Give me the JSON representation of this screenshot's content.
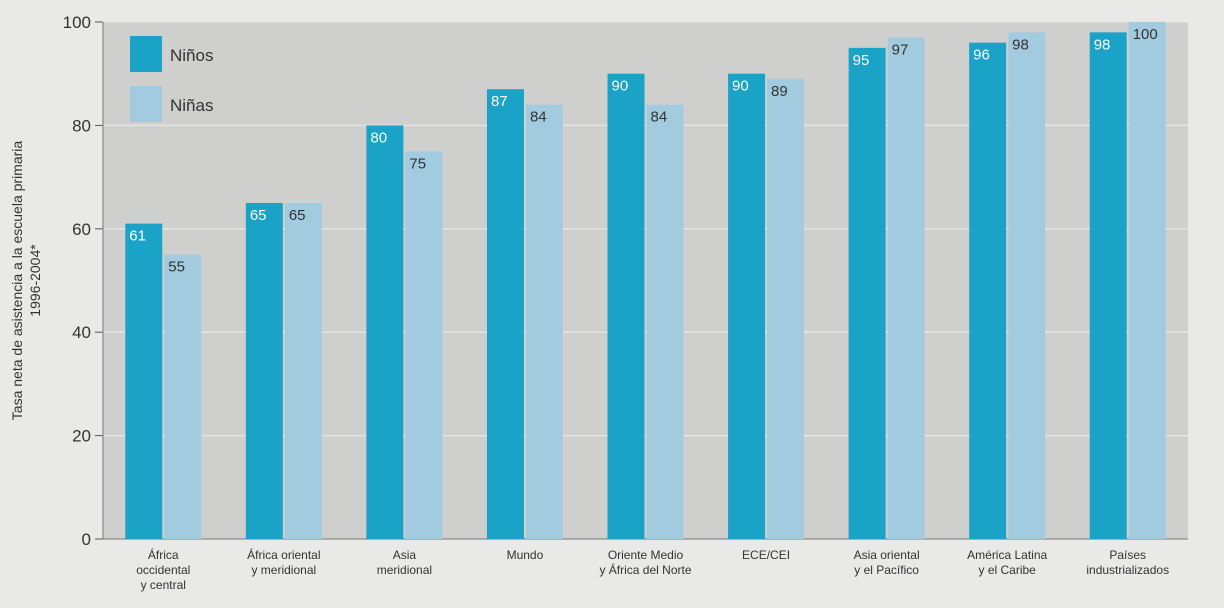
{
  "chart_data": {
    "type": "bar",
    "ylabel_lines": [
      "Tasa neta de asistencia a la escuela primaria",
      "1996-2004*"
    ],
    "ylim": [
      0,
      100
    ],
    "yticks": [
      0,
      20,
      40,
      60,
      80,
      100
    ],
    "grid": true,
    "legend_position": "top-left",
    "categories": [
      [
        "África",
        "occidental",
        "y central"
      ],
      [
        "África oriental",
        "y meridional"
      ],
      [
        "Asia",
        "meridional"
      ],
      [
        "Mundo"
      ],
      [
        "Oriente Medio",
        "y África del Norte"
      ],
      [
        "ECE/CEI"
      ],
      [
        "Asia oriental",
        "y el Pacífico"
      ],
      [
        "América Latina",
        "y el Caribe"
      ],
      [
        "Países",
        "industrializados"
      ]
    ],
    "series": [
      {
        "name": "Niños",
        "color": "#1aa3c6",
        "values": [
          61,
          65,
          80,
          87,
          90,
          90,
          95,
          96,
          98
        ]
      },
      {
        "name": "Niñas",
        "color": "#a3cbe0",
        "values": [
          55,
          65,
          75,
          84,
          84,
          89,
          97,
          98,
          100
        ]
      }
    ],
    "plot_background": "#cfd0ce",
    "page_background": "#e9e9e7"
  }
}
